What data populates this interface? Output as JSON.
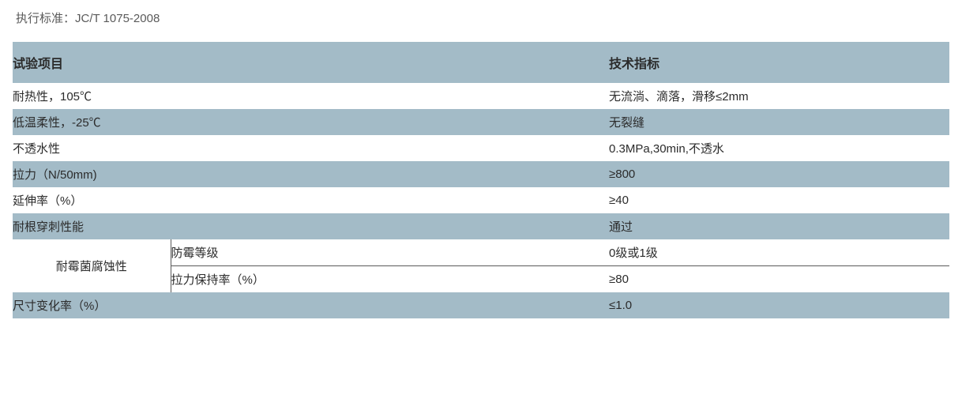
{
  "standard_line": "执行标准：JC/T 1075-2008",
  "table": {
    "header": {
      "col1": "试验项目",
      "col2": "技术指标"
    },
    "band_color": "#a3bbc7",
    "text_color": "#2b2b2b",
    "label_color": "#5a5a5a",
    "rows": [
      {
        "label": "耐热性，105℃",
        "value": "无流淌、滴落，滑移≤2mm",
        "band": false
      },
      {
        "label": "低温柔性，-25℃",
        "value": "无裂缝",
        "band": true
      },
      {
        "label": "不透水性",
        "value": "0.3MPa,30min,不透水",
        "band": false
      },
      {
        "label": "拉力（N/50mm)",
        "value": "≥800",
        "band": true
      },
      {
        "label": "延伸率（%）",
        "value": "≥40",
        "band": false
      },
      {
        "label": "耐根穿刺性能",
        "value": "通过",
        "band": true
      }
    ],
    "group": {
      "group_label": "耐霉菌腐蚀性",
      "sub": [
        {
          "label": "防霉等级",
          "value": "0级或1级"
        },
        {
          "label": "拉力保持率（%）",
          "value": "≥80"
        }
      ]
    },
    "tail": {
      "label": "尺寸变化率（%）",
      "value": "≤1.0",
      "band": true
    }
  }
}
